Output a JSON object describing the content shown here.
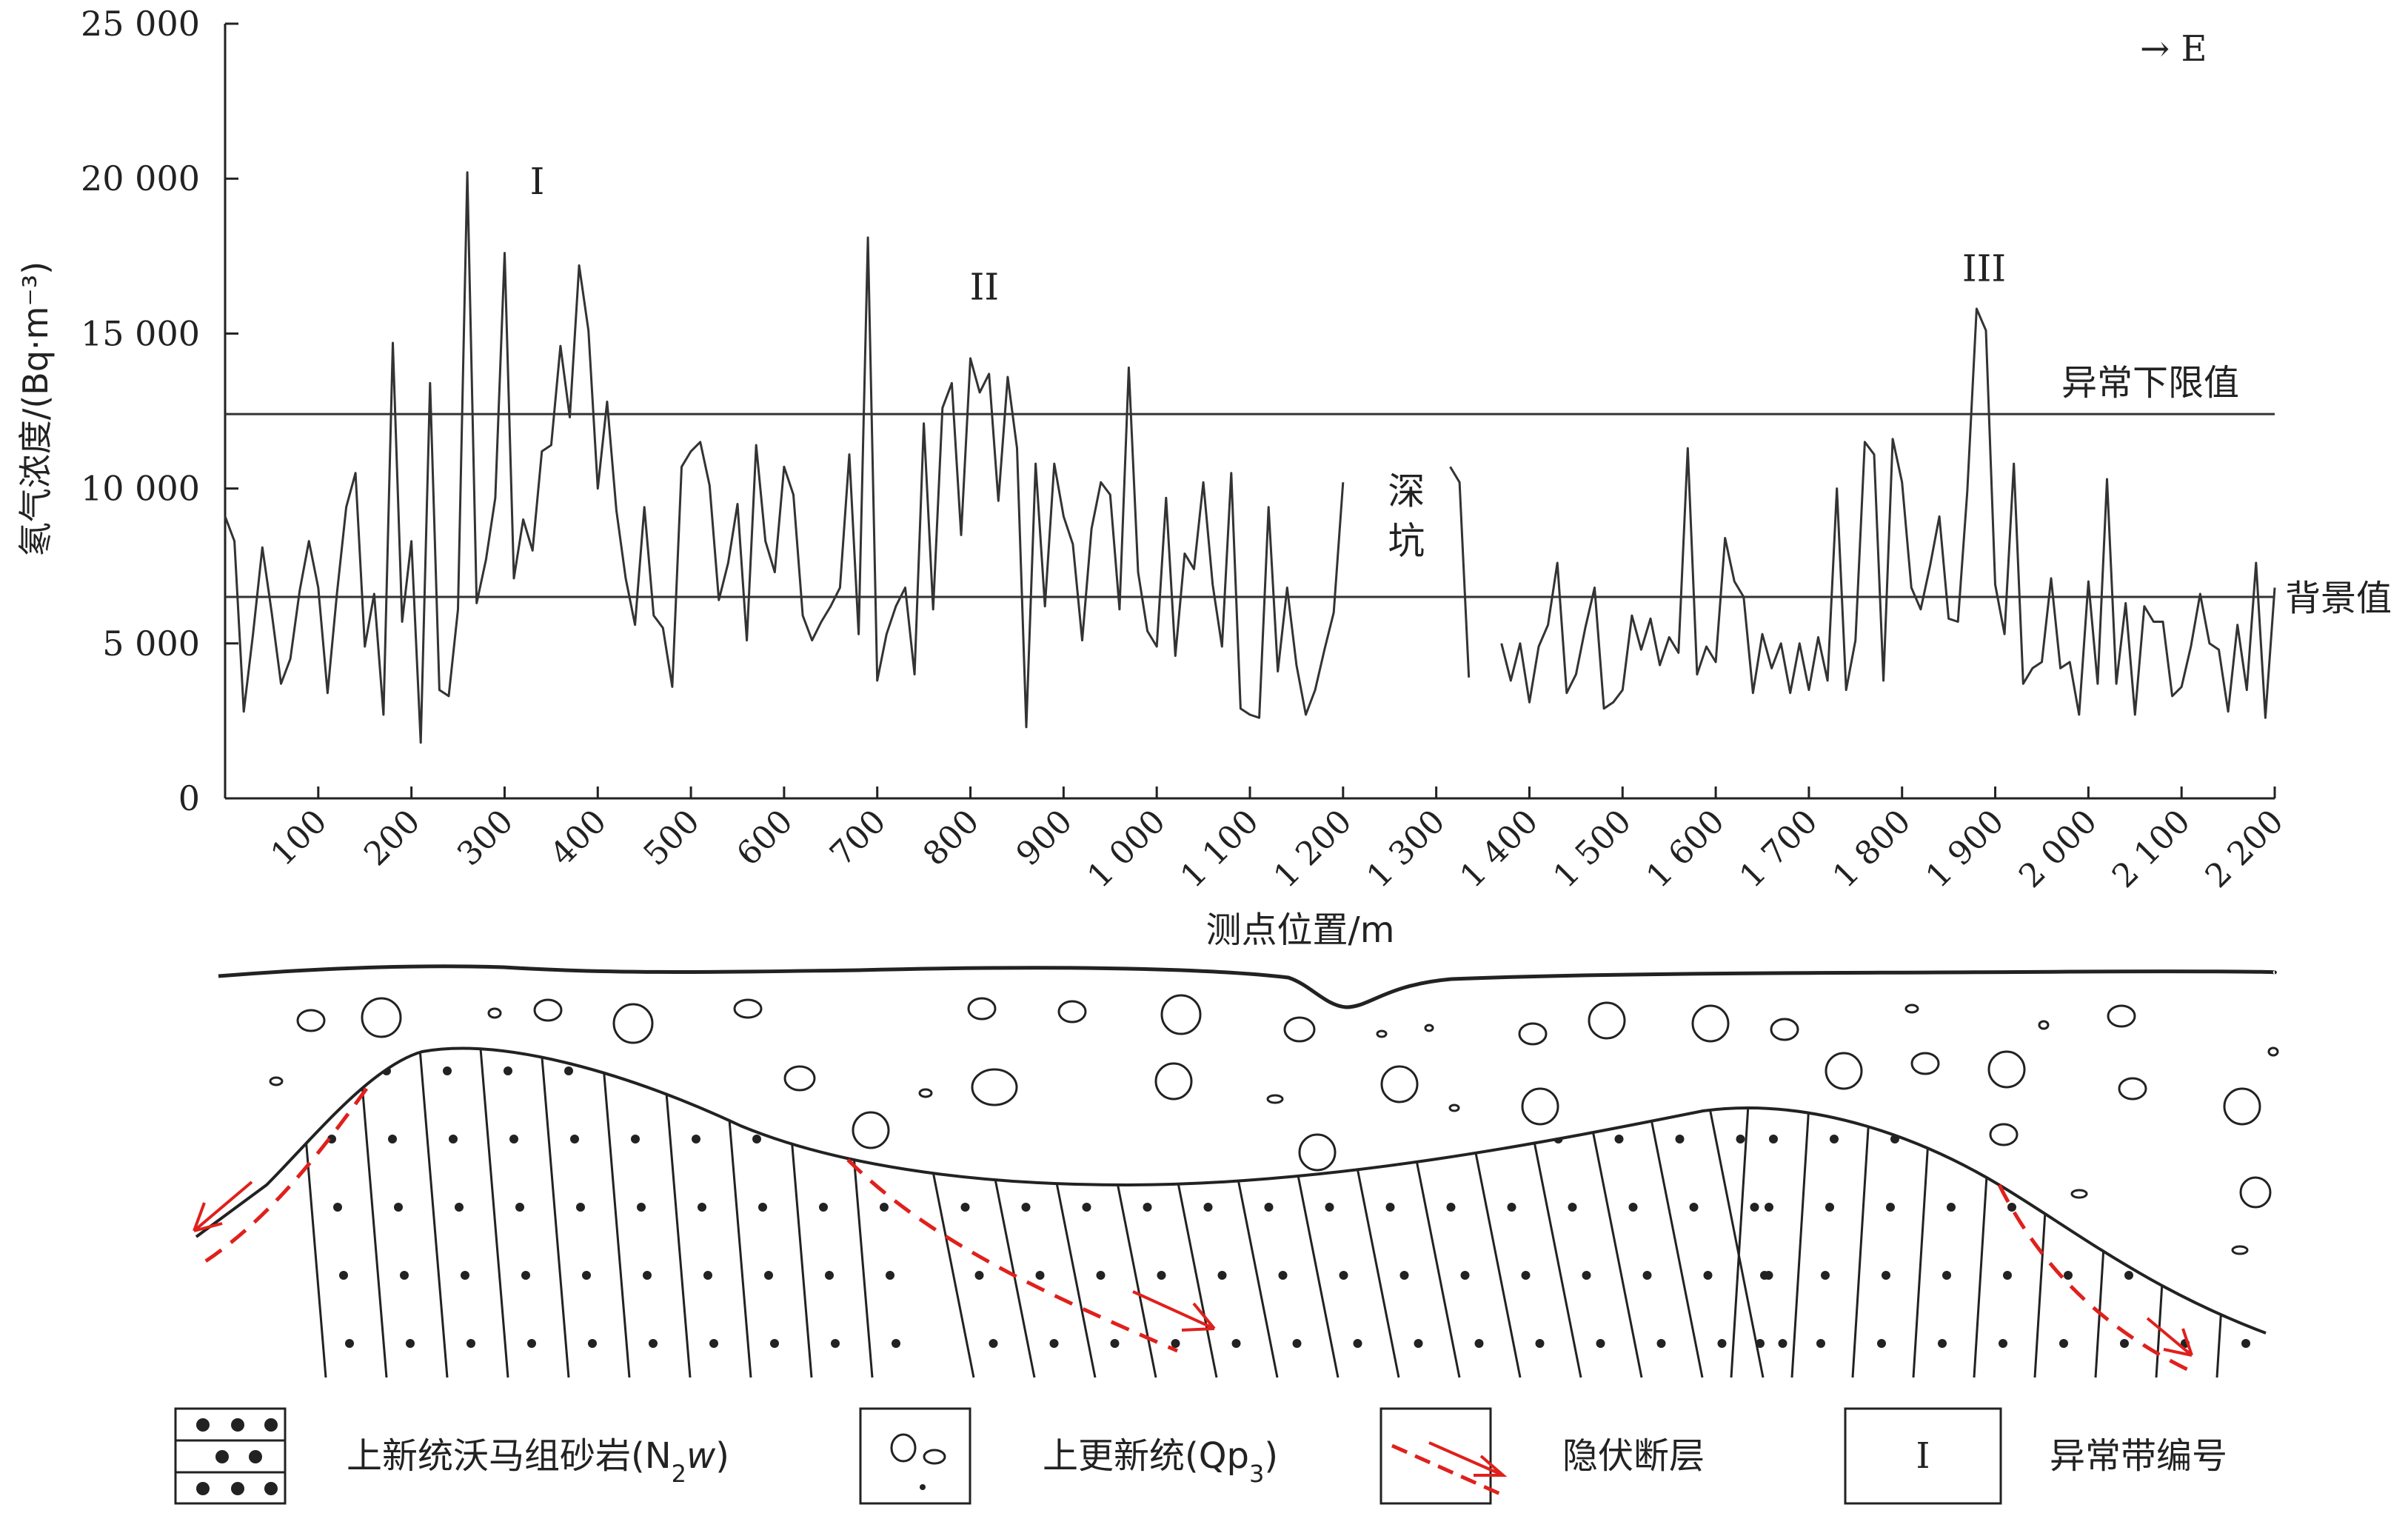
{
  "chart_data": {
    "type": "line",
    "xlabel": "测点位置/m",
    "ylabel": "氡气浓度/(Bq·m⁻³)",
    "xlim": [
      0,
      2200
    ],
    "ylim": [
      0,
      25000
    ],
    "x_ticks": [
      100,
      200,
      300,
      400,
      500,
      600,
      700,
      800,
      900,
      1000,
      1100,
      1200,
      1300,
      1400,
      1500,
      1600,
      1700,
      1800,
      1900,
      2000,
      2100,
      2200
    ],
    "x_tick_labels": [
      "100",
      "200",
      "300",
      "400",
      "500",
      "600",
      "700",
      "800",
      "900",
      "1 000",
      "1 100",
      "1 200",
      "1 300",
      "1 400",
      "1 500",
      "1 600",
      "1 700",
      "1 800",
      "1 900",
      "2 000",
      "2 100",
      "2 200"
    ],
    "y_ticks": [
      0,
      5000,
      10000,
      15000,
      20000,
      25000
    ],
    "y_tick_labels": [
      "0",
      "5 000",
      "10 000",
      "15 000",
      "20 000",
      "25 000"
    ],
    "direction_label": "→ E",
    "reference_lines": [
      {
        "name": "异常下限值",
        "value": 12400
      },
      {
        "name": "背景值",
        "value": 6500
      }
    ],
    "annotations": [
      {
        "text": "I",
        "x": 335,
        "y": 19500
      },
      {
        "text": "II",
        "x": 815,
        "y": 16100
      },
      {
        "text": "III",
        "x": 1888,
        "y": 16700
      },
      {
        "text": "深",
        "x": 1268,
        "y": 9500
      },
      {
        "text": "坑",
        "x": 1268,
        "y": 7900
      }
    ],
    "series": [
      {
        "segments": [
          [
            [
              0,
              9100
            ],
            [
              10,
              8300
            ],
            [
              20,
              2800
            ],
            [
              30,
              5300
            ],
            [
              40,
              8100
            ],
            [
              50,
              6000
            ],
            [
              60,
              3700
            ],
            [
              70,
              4500
            ],
            [
              80,
              6700
            ],
            [
              90,
              8300
            ],
            [
              100,
              6800
            ],
            [
              110,
              3400
            ],
            [
              120,
              6600
            ],
            [
              130,
              9400
            ],
            [
              140,
              10500
            ],
            [
              150,
              4900
            ],
            [
              160,
              6600
            ],
            [
              170,
              2700
            ],
            [
              180,
              14700
            ],
            [
              190,
              5700
            ],
            [
              200,
              8300
            ],
            [
              210,
              1800
            ],
            [
              220,
              13400
            ],
            [
              230,
              3500
            ],
            [
              240,
              3300
            ],
            [
              250,
              6100
            ],
            [
              260,
              20200
            ],
            [
              270,
              6300
            ],
            [
              280,
              7700
            ],
            [
              290,
              9700
            ],
            [
              300,
              17600
            ],
            [
              310,
              7100
            ],
            [
              320,
              9000
            ],
            [
              330,
              8000
            ],
            [
              340,
              11200
            ],
            [
              350,
              11400
            ],
            [
              360,
              14600
            ],
            [
              370,
              12300
            ],
            [
              380,
              17200
            ],
            [
              390,
              15100
            ],
            [
              400,
              10000
            ],
            [
              410,
              12800
            ],
            [
              420,
              9300
            ],
            [
              430,
              7100
            ],
            [
              440,
              5600
            ],
            [
              450,
              9400
            ],
            [
              460,
              5900
            ],
            [
              470,
              5500
            ],
            [
              480,
              3600
            ],
            [
              490,
              10700
            ],
            [
              500,
              11200
            ],
            [
              510,
              11500
            ],
            [
              520,
              10100
            ],
            [
              530,
              6400
            ],
            [
              540,
              7600
            ],
            [
              550,
              9500
            ],
            [
              560,
              5100
            ],
            [
              570,
              11400
            ],
            [
              580,
              8300
            ],
            [
              590,
              7300
            ],
            [
              600,
              10700
            ],
            [
              610,
              9800
            ],
            [
              620,
              5900
            ],
            [
              630,
              5100
            ],
            [
              640,
              5700
            ],
            [
              650,
              6200
            ],
            [
              660,
              6800
            ],
            [
              670,
              11100
            ],
            [
              680,
              5300
            ],
            [
              690,
              18100
            ],
            [
              700,
              3800
            ],
            [
              710,
              5300
            ],
            [
              720,
              6200
            ],
            [
              730,
              6800
            ],
            [
              740,
              4000
            ],
            [
              750,
              12100
            ],
            [
              760,
              6100
            ],
            [
              770,
              12600
            ],
            [
              780,
              13400
            ],
            [
              790,
              8500
            ],
            [
              800,
              14200
            ],
            [
              810,
              13100
            ],
            [
              820,
              13700
            ],
            [
              830,
              9600
            ],
            [
              840,
              13600
            ],
            [
              850,
              11300
            ],
            [
              860,
              2300
            ],
            [
              870,
              10800
            ],
            [
              880,
              6200
            ],
            [
              890,
              10800
            ],
            [
              900,
              9100
            ],
            [
              910,
              8200
            ],
            [
              920,
              5100
            ],
            [
              930,
              8700
            ],
            [
              940,
              10200
            ],
            [
              950,
              9800
            ],
            [
              960,
              6100
            ],
            [
              970,
              13900
            ],
            [
              980,
              7300
            ],
            [
              990,
              5400
            ],
            [
              1000,
              4900
            ],
            [
              1010,
              9700
            ],
            [
              1020,
              4600
            ],
            [
              1030,
              7900
            ],
            [
              1040,
              7400
            ],
            [
              1050,
              10200
            ],
            [
              1060,
              6900
            ],
            [
              1070,
              4900
            ],
            [
              1080,
              10500
            ],
            [
              1090,
              2900
            ],
            [
              1100,
              2700
            ],
            [
              1110,
              2600
            ],
            [
              1120,
              9400
            ],
            [
              1130,
              4100
            ],
            [
              1140,
              6800
            ],
            [
              1150,
              4300
            ],
            [
              1160,
              2700
            ],
            [
              1170,
              3500
            ],
            [
              1180,
              4800
            ],
            [
              1190,
              6000
            ],
            [
              1200,
              10200
            ]
          ],
          [
            [
              1315,
              10700
            ],
            [
              1325,
              10200
            ],
            [
              1335,
              3900
            ]
          ],
          [
            [
              1370,
              5000
            ],
            [
              1380,
              3800
            ],
            [
              1390,
              5000
            ],
            [
              1400,
              3100
            ],
            [
              1410,
              4900
            ],
            [
              1420,
              5600
            ],
            [
              1430,
              7600
            ],
            [
              1440,
              3400
            ],
            [
              1450,
              4000
            ],
            [
              1460,
              5500
            ],
            [
              1470,
              6800
            ],
            [
              1480,
              2900
            ],
            [
              1490,
              3100
            ],
            [
              1500,
              3500
            ],
            [
              1510,
              5900
            ],
            [
              1520,
              4800
            ],
            [
              1530,
              5800
            ],
            [
              1540,
              4300
            ],
            [
              1550,
              5200
            ],
            [
              1560,
              4700
            ],
            [
              1570,
              11300
            ],
            [
              1580,
              4000
            ],
            [
              1590,
              4900
            ],
            [
              1600,
              4400
            ],
            [
              1610,
              8400
            ],
            [
              1620,
              7000
            ],
            [
              1630,
              6500
            ],
            [
              1640,
              3400
            ],
            [
              1650,
              5300
            ],
            [
              1660,
              4200
            ],
            [
              1670,
              5000
            ],
            [
              1680,
              3400
            ],
            [
              1690,
              5000
            ],
            [
              1700,
              3500
            ],
            [
              1710,
              5200
            ],
            [
              1720,
              3800
            ],
            [
              1730,
              10000
            ],
            [
              1740,
              3500
            ],
            [
              1750,
              5100
            ],
            [
              1760,
              11500
            ],
            [
              1770,
              11100
            ],
            [
              1780,
              3800
            ],
            [
              1790,
              11600
            ],
            [
              1800,
              10200
            ],
            [
              1810,
              6800
            ],
            [
              1820,
              6100
            ],
            [
              1830,
              7500
            ],
            [
              1840,
              9100
            ],
            [
              1850,
              5800
            ],
            [
              1860,
              5700
            ],
            [
              1870,
              9900
            ],
            [
              1880,
              15800
            ],
            [
              1890,
              15100
            ],
            [
              1900,
              6900
            ],
            [
              1910,
              5300
            ],
            [
              1920,
              10800
            ],
            [
              1930,
              3700
            ],
            [
              1940,
              4200
            ],
            [
              1950,
              4400
            ],
            [
              1960,
              7100
            ],
            [
              1970,
              4200
            ],
            [
              1980,
              4400
            ],
            [
              1990,
              2700
            ],
            [
              2000,
              7000
            ],
            [
              2010,
              3700
            ],
            [
              2020,
              10300
            ],
            [
              2030,
              3700
            ],
            [
              2040,
              6300
            ],
            [
              2050,
              2700
            ],
            [
              2060,
              6200
            ],
            [
              2070,
              5700
            ],
            [
              2080,
              5700
            ],
            [
              2090,
              3300
            ],
            [
              2100,
              3600
            ],
            [
              2110,
              4900
            ],
            [
              2120,
              6600
            ],
            [
              2130,
              5000
            ],
            [
              2140,
              4800
            ],
            [
              2150,
              2800
            ],
            [
              2160,
              5600
            ],
            [
              2170,
              3500
            ],
            [
              2180,
              7600
            ],
            [
              2190,
              2600
            ],
            [
              2200,
              6800
            ]
          ]
        ]
      }
    ]
  },
  "legend": [
    {
      "symbol": "sandstone",
      "label": "上新统沃马组砂岩(N",
      "sub": "2",
      "ital": "w",
      "tail": ")"
    },
    {
      "symbol": "gravel",
      "label": "上更新统(Qp",
      "sub": "3",
      "tail": ")"
    },
    {
      "symbol": "fault",
      "label": "隐伏断层"
    },
    {
      "symbol": "zone-box",
      "box_text": "I",
      "label": "异常带编号"
    }
  ],
  "colors": {
    "line": "#333333",
    "fault": "#e0201c",
    "stroke": "#222222"
  }
}
